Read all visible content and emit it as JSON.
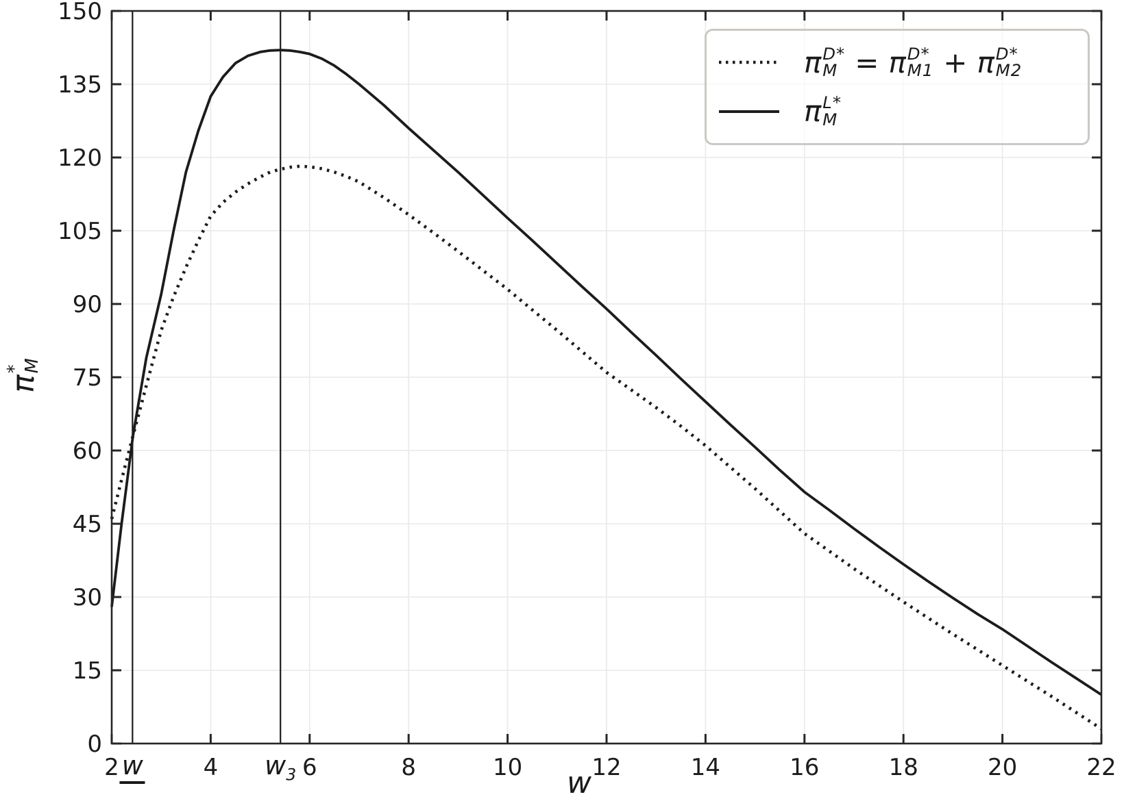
{
  "figure": {
    "background": "#ffffff"
  },
  "colors": {
    "line": "#1c1c1c",
    "spine": "#262626",
    "grid": "#ebebeb",
    "legend_border": "#ccc8c3",
    "text": "#1c1c1c"
  },
  "axes": {
    "x": {
      "label": "w",
      "ticks": [
        2,
        4,
        6,
        8,
        10,
        12,
        14,
        16,
        18,
        20,
        22
      ],
      "range": [
        2,
        22
      ]
    },
    "y": {
      "label_base": "π",
      "label_sup": "*",
      "label_sub": "M",
      "ticks": [
        0,
        15,
        30,
        45,
        60,
        75,
        90,
        105,
        120,
        135,
        150
      ],
      "range": [
        0,
        150
      ]
    }
  },
  "markers": [
    {
      "name": "w-lower",
      "x": 2.42,
      "label_base": "w",
      "underline": true
    },
    {
      "name": "w3",
      "x": 5.41,
      "label_base": "w",
      "label_sub": "3"
    }
  ],
  "legend": {
    "position": "upper right",
    "items": [
      {
        "name": "pi-M-D-star-equation",
        "style": "dotted",
        "parts": [
          {
            "base": "π",
            "sup": "D*",
            "sub": "M"
          },
          {
            "op": "="
          },
          {
            "base": "π",
            "sup": "D*",
            "sub": "M1"
          },
          {
            "op": "+"
          },
          {
            "base": "π",
            "sup": "D*",
            "sub": "M2"
          }
        ]
      },
      {
        "name": "pi-M-L-star",
        "style": "solid",
        "parts": [
          {
            "base": "π",
            "sup": "L*",
            "sub": "M"
          }
        ]
      }
    ]
  },
  "chart_data": {
    "type": "line",
    "title": "",
    "xlabel": "w",
    "ylabel": "π_M^*",
    "xlim": [
      2,
      22
    ],
    "ylim": [
      0,
      150
    ],
    "grid": true,
    "legend_position": "upper right",
    "vertical_lines": [
      {
        "x": 2.42,
        "label": "w (lower bound, underlined)",
        "crossing_value": 63
      },
      {
        "x": 5.41,
        "label": "w_3",
        "peak_value_solid": 142
      }
    ],
    "x_shared": [
      2,
      2.2,
      2.43,
      2.7,
      3,
      3.25,
      3.5,
      3.75,
      4,
      4.25,
      4.5,
      4.75,
      5,
      5.2,
      5.41,
      5.6,
      5.8,
      6,
      6.25,
      6.5,
      6.75,
      7,
      7.5,
      8,
      8.5,
      9,
      9.5,
      10,
      10.5,
      11,
      11.5,
      12,
      12.5,
      13,
      13.5,
      14,
      14.5,
      15,
      15.5,
      16,
      16.5,
      17,
      17.5,
      18,
      18.5,
      19,
      19.5,
      20,
      20.5,
      21,
      21.5,
      22
    ],
    "series": [
      {
        "name": "pi_M_D_star",
        "label": "π_M^{D*} = π_{M1}^{D*} + π_{M2}^{D*}",
        "style": "dotted",
        "peak": {
          "x": 5.8,
          "y": 118
        },
        "y": [
          46,
          54,
          63,
          73.3,
          84.6,
          91.5,
          97.5,
          103,
          108,
          110.8,
          112.9,
          114.6,
          116,
          117,
          117.6,
          118,
          118.2,
          118.1,
          117.7,
          117,
          116.1,
          115,
          111.8,
          108.3,
          104.6,
          100.8,
          96.9,
          93,
          88.8,
          84.6,
          80.3,
          76,
          72.4,
          68.8,
          65,
          61,
          56.6,
          52.2,
          47.6,
          43,
          39.4,
          35.8,
          32.4,
          29,
          25.7,
          22.4,
          19.2,
          16,
          12.8,
          9.6,
          6.3,
          3
        ]
      },
      {
        "name": "pi_M_L_star",
        "label": "π_M^{L*}",
        "style": "solid",
        "peak": {
          "x": 5.41,
          "y": 142
        },
        "y": [
          28,
          45,
          63,
          79,
          92,
          105,
          117,
          125.5,
          132.5,
          136.5,
          139.3,
          140.8,
          141.6,
          141.9,
          142,
          141.9,
          141.6,
          141.2,
          140.2,
          138.8,
          137,
          135,
          130.7,
          126,
          121.5,
          117,
          112.3,
          107.6,
          103,
          98.3,
          93.6,
          89,
          84.2,
          79.5,
          74.7,
          70,
          65.3,
          60.7,
          56,
          51.5,
          47.8,
          44,
          40.3,
          36.7,
          33.2,
          29.8,
          26.5,
          23.4,
          20,
          16.6,
          13.3,
          10
        ]
      }
    ]
  }
}
